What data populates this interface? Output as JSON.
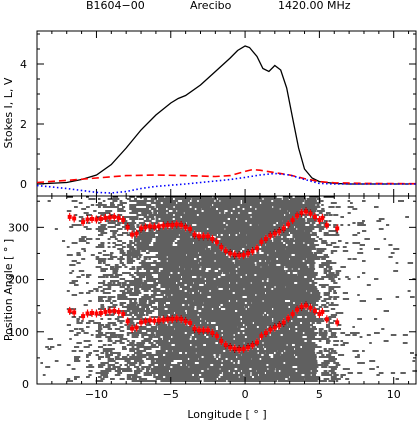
{
  "header": {
    "pulsar": "B1604−00",
    "telescope": "Arecibo",
    "frequency": "1420.00 MHz"
  },
  "chart_data": [
    {
      "type": "line",
      "panel": "top",
      "ylabel": "Stokes I, L, V",
      "xlim": [
        -14,
        11.5
      ],
      "ylim": [
        -0.4,
        5.1
      ],
      "x_ticks": [
        -10,
        -5,
        0,
        5,
        10
      ],
      "y_ticks": [
        0,
        2,
        4
      ],
      "series": [
        {
          "style": "solid",
          "color": "#000000",
          "x": [
            -14,
            -12,
            -11,
            -10,
            -9,
            -8,
            -7,
            -6,
            -5,
            -4.5,
            -4,
            -3,
            -2,
            -1,
            -0.5,
            0,
            0.3,
            0.8,
            1.2,
            1.6,
            2.0,
            2.4,
            2.8,
            3.2,
            3.6,
            4.0,
            4.5,
            5,
            6,
            7,
            11.5
          ],
          "y": [
            0,
            0.05,
            0.15,
            0.3,
            0.65,
            1.2,
            1.8,
            2.3,
            2.7,
            2.85,
            2.95,
            3.3,
            3.75,
            4.2,
            4.45,
            4.6,
            4.55,
            4.25,
            3.85,
            3.75,
            3.95,
            3.8,
            3.2,
            2.2,
            1.2,
            0.5,
            0.2,
            0.08,
            0.02,
            0.0,
            0.0
          ]
        },
        {
          "style": "dashed",
          "color": "#ff0000",
          "x": [
            -14,
            -12,
            -10,
            -8,
            -6,
            -4,
            -2,
            -1,
            0,
            0.5,
            1,
            2,
            3,
            4,
            5,
            6,
            8,
            11.5
          ],
          "y": [
            0.05,
            0.12,
            0.2,
            0.28,
            0.3,
            0.28,
            0.25,
            0.28,
            0.42,
            0.48,
            0.46,
            0.38,
            0.3,
            0.18,
            0.08,
            0.04,
            0.02,
            0.01
          ]
        },
        {
          "style": "dotted",
          "color": "#0000ff",
          "x": [
            -14,
            -12,
            -10,
            -9,
            -8,
            -7,
            -6,
            -5,
            -4,
            -3,
            -2,
            -1,
            0,
            1,
            2,
            3,
            4,
            5,
            6,
            8,
            11.5
          ],
          "y": [
            -0.05,
            -0.15,
            -0.28,
            -0.3,
            -0.25,
            -0.15,
            -0.08,
            -0.04,
            0.0,
            0.05,
            0.1,
            0.15,
            0.22,
            0.3,
            0.35,
            0.3,
            0.15,
            0.02,
            0.0,
            0.0,
            0.0
          ]
        }
      ]
    },
    {
      "type": "scatter",
      "panel": "bottom",
      "xlabel": "Longitude [ ° ]",
      "ylabel": "Position Angle [ ° ]",
      "xlim": [
        -14,
        11.5
      ],
      "ylim": [
        0,
        360
      ],
      "x_ticks": [
        -10,
        -5,
        0,
        5,
        10
      ],
      "y_ticks": [
        0,
        100,
        200,
        300
      ],
      "series": [
        {
          "name": "PA",
          "color": "#ff0000",
          "x": [
            -11.8,
            -11.5,
            -10.9,
            -10.6,
            -10.3,
            -10.0,
            -9.7,
            -9.4,
            -9.1,
            -8.8,
            -8.5,
            -8.2,
            -7.9,
            -7.6,
            -7.3,
            -7.0,
            -6.7,
            -6.4,
            -6.1,
            -5.8,
            -5.5,
            -5.2,
            -4.9,
            -4.6,
            -4.3,
            -4.0,
            -3.7,
            -3.4,
            -3.1,
            -2.8,
            -2.5,
            -2.2,
            -1.9,
            -1.6,
            -1.3,
            -1.0,
            -0.7,
            -0.4,
            -0.1,
            0.2,
            0.5,
            0.8,
            1.1,
            1.4,
            1.7,
            2.0,
            2.3,
            2.6,
            2.9,
            3.2,
            3.5,
            3.8,
            4.1,
            4.4,
            4.7,
            5.0,
            5.2,
            5.5,
            6.2
          ],
          "y": [
            140,
            137,
            130,
            135,
            136,
            135,
            136,
            138,
            139,
            140,
            138,
            134,
            120,
            106,
            108,
            118,
            120,
            122,
            121,
            122,
            123,
            124,
            124,
            126,
            124,
            120,
            117,
            106,
            103,
            103,
            103,
            98,
            92,
            82,
            75,
            70,
            68,
            66,
            67,
            70,
            74,
            80,
            92,
            98,
            104,
            108,
            112,
            118,
            126,
            134,
            142,
            148,
            150,
            146,
            140,
            134,
            138,
            124,
            118
          ]
        }
      ],
      "wraps": 180
    }
  ]
}
